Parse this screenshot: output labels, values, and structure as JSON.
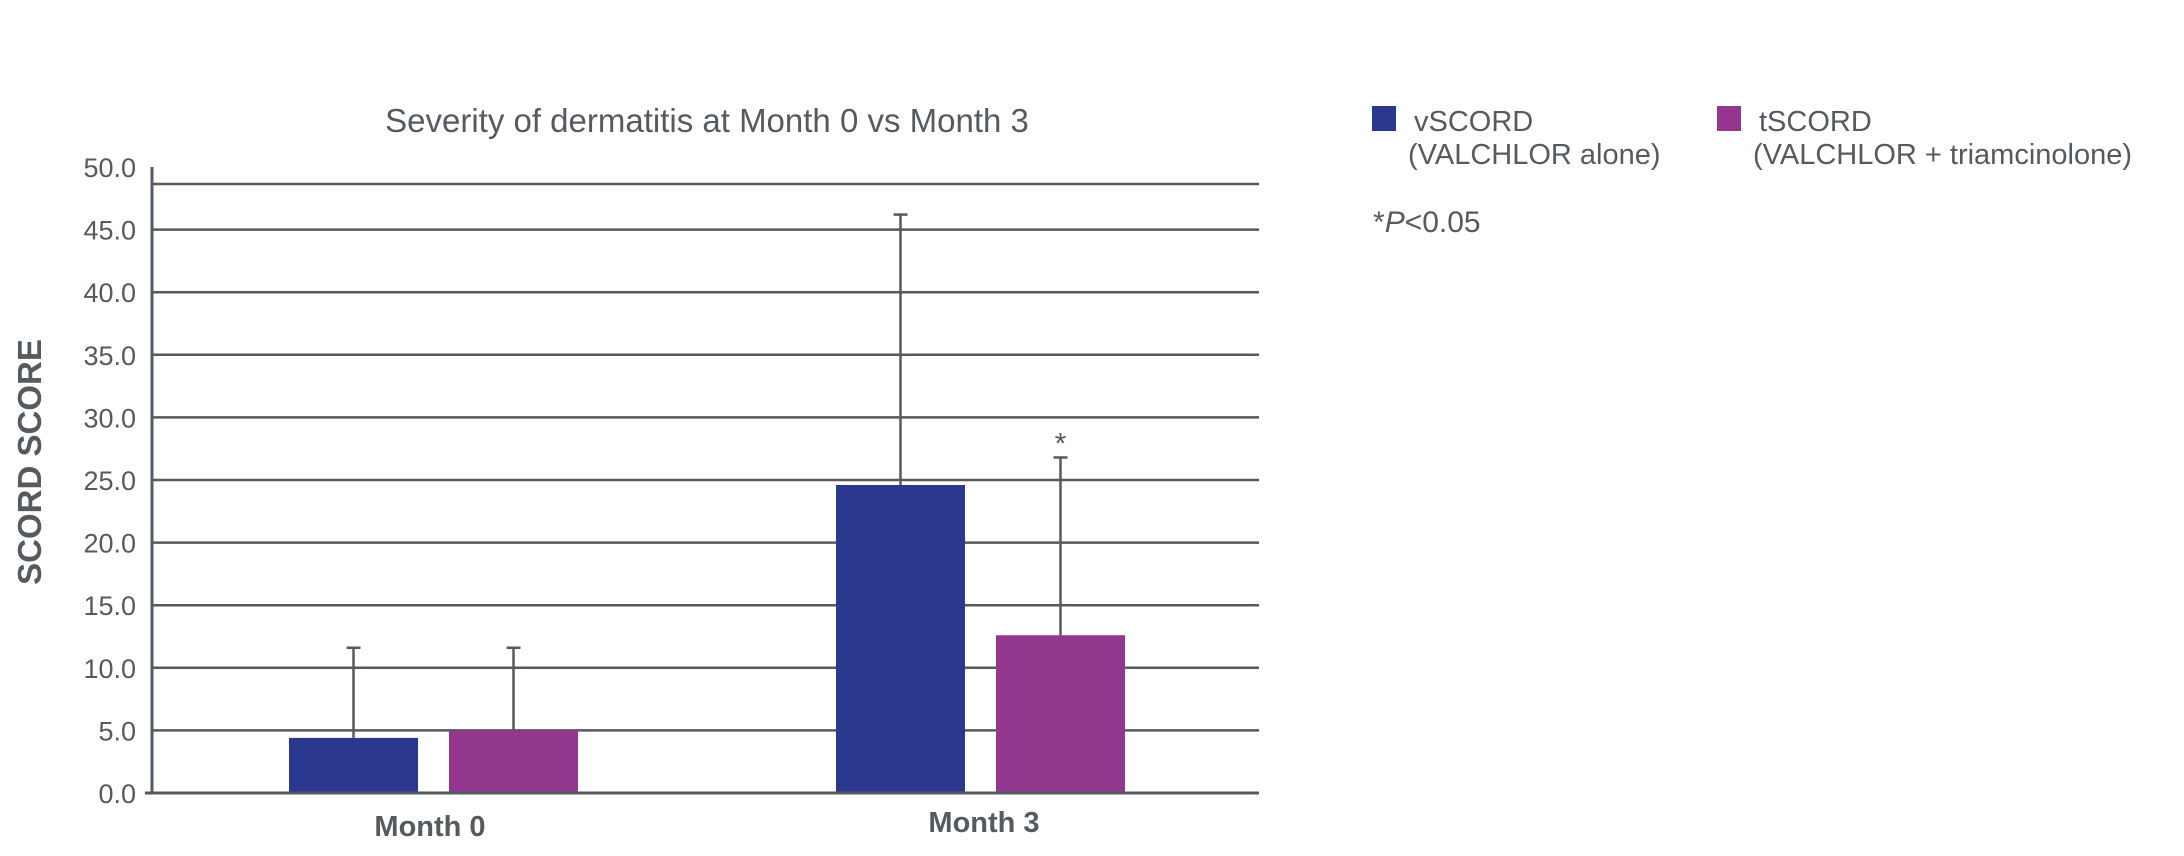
{
  "chart_data": {
    "type": "bar",
    "title": "Severity of dermatitis at Month 0 vs Month 3",
    "xlabel": "",
    "ylabel": "SCORD SCORE",
    "ylim": [
      0,
      50
    ],
    "yticks": [
      "0.0",
      "5.0",
      "10.0",
      "15.0",
      "20.0",
      "25.0",
      "30.0",
      "35.0",
      "40.0",
      "45.0",
      "50.0"
    ],
    "categories": [
      "Month 0",
      "Month 3"
    ],
    "series": [
      {
        "name": "vSCORD",
        "sub": "(VALCHLOR alone)",
        "color": "#2b388f",
        "values": [
          4.4,
          24.6
        ],
        "error_upper": [
          11.6,
          46.2
        ]
      },
      {
        "name": "tSCORD",
        "sub": "(VALCHLOR + triamcinolone)",
        "color": "#93368d",
        "values": [
          5.0,
          12.6
        ],
        "error_upper": [
          11.6,
          26.8
        ]
      }
    ],
    "annotations": [
      {
        "text": "*",
        "category": "Month 3",
        "series": "tSCORD"
      }
    ],
    "grid": true,
    "legend_position": "top-right",
    "footnote": {
      "symbol": "*",
      "italic": "P",
      "rest": "<0.05"
    }
  }
}
